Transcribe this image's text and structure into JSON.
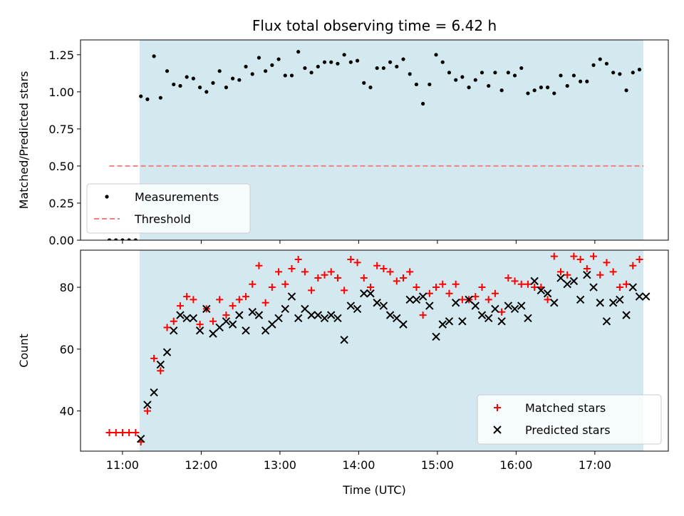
{
  "chart_data": [
    {
      "type": "scatter",
      "title": "Flux total observing time = 6.42 h",
      "ylabel": "Matched/Predicted stars",
      "xlabel": "",
      "xlim": [
        "10:28",
        "17:56"
      ],
      "ylim": [
        0,
        1.35
      ],
      "yticks": [
        "0.00",
        "0.25",
        "0.50",
        "0.75",
        "1.00",
        "1.25"
      ],
      "xticks": [
        "11:00",
        "12:00",
        "13:00",
        "14:00",
        "15:00",
        "16:00",
        "17:00"
      ],
      "shaded_span": [
        "11:13",
        "17:37"
      ],
      "shaded_color": "#d3e9ef",
      "legend_position": "lower-left",
      "series": [
        {
          "name": "Measurements",
          "color": "#000000",
          "marker": "dot",
          "x": [
            "10:50",
            "10:55",
            "11:00",
            "11:05",
            "11:10",
            "11:14",
            "11:19",
            "11:24",
            "11:29",
            "11:34",
            "11:39",
            "11:44",
            "11:49",
            "11:54",
            "11:59",
            "12:04",
            "12:09",
            "12:14",
            "12:19",
            "12:24",
            "12:29",
            "12:34",
            "12:39",
            "12:44",
            "12:49",
            "12:54",
            "12:59",
            "13:04",
            "13:09",
            "13:14",
            "13:19",
            "13:24",
            "13:29",
            "13:34",
            "13:39",
            "13:44",
            "13:49",
            "13:54",
            "13:59",
            "14:04",
            "14:09",
            "14:14",
            "14:19",
            "14:24",
            "14:29",
            "14:34",
            "14:39",
            "14:44",
            "14:49",
            "14:54",
            "14:59",
            "15:04",
            "15:09",
            "15:14",
            "15:19",
            "15:24",
            "15:29",
            "15:34",
            "15:39",
            "15:44",
            "15:49",
            "15:54",
            "15:59",
            "16:04",
            "16:09",
            "16:14",
            "16:19",
            "16:24",
            "16:29",
            "16:34",
            "16:39",
            "16:44",
            "16:49",
            "16:54",
            "16:59",
            "17:04",
            "17:09",
            "17:14",
            "17:19",
            "17:24",
            "17:29",
            "17:34"
          ],
          "y": [
            0.0,
            0.0,
            0.0,
            0.0,
            0.0,
            0.97,
            0.95,
            1.24,
            0.96,
            1.14,
            1.05,
            1.04,
            1.1,
            1.09,
            1.03,
            1.0,
            1.06,
            1.14,
            1.03,
            1.09,
            1.08,
            1.17,
            1.12,
            1.23,
            1.14,
            1.18,
            1.22,
            1.11,
            1.11,
            1.27,
            1.16,
            1.13,
            1.17,
            1.2,
            1.2,
            1.19,
            1.25,
            1.2,
            1.21,
            1.06,
            1.03,
            1.16,
            1.16,
            1.2,
            1.17,
            1.22,
            1.12,
            1.05,
            0.92,
            1.05,
            1.25,
            1.2,
            1.13,
            1.08,
            1.1,
            1.03,
            1.08,
            1.13,
            1.04,
            1.13,
            1.01,
            1.13,
            1.11,
            1.16,
            0.99,
            1.01,
            1.03,
            1.03,
            0.99,
            1.11,
            1.04,
            1.11,
            1.07,
            1.07,
            1.18,
            1.22,
            1.19,
            1.13,
            1.12,
            1.01,
            1.13,
            1.15
          ]
        },
        {
          "name": "Threshold",
          "color": "#f08080",
          "style": "dashed",
          "x": [
            "10:50",
            "17:37"
          ],
          "y": [
            0.5,
            0.5
          ]
        }
      ]
    },
    {
      "type": "scatter",
      "title": "",
      "ylabel": "Count",
      "xlabel": "Time (UTC)",
      "xlim": [
        "10:28",
        "17:56"
      ],
      "ylim": [
        27,
        92
      ],
      "yticks": [
        "40",
        "60",
        "80"
      ],
      "xticks": [
        "11:00",
        "12:00",
        "13:00",
        "14:00",
        "15:00",
        "16:00",
        "17:00"
      ],
      "shaded_span": [
        "11:13",
        "17:37"
      ],
      "shaded_color": "#d3e9ef",
      "legend_position": "lower-right",
      "series": [
        {
          "name": "Matched stars",
          "color": "#ff0000",
          "marker": "plus",
          "x": [
            "10:50",
            "10:55",
            "11:00",
            "11:05",
            "11:10",
            "11:14",
            "11:19",
            "11:24",
            "11:29",
            "11:34",
            "11:39",
            "11:44",
            "11:49",
            "11:54",
            "11:59",
            "12:04",
            "12:09",
            "12:14",
            "12:19",
            "12:24",
            "12:29",
            "12:34",
            "12:39",
            "12:44",
            "12:49",
            "12:54",
            "12:59",
            "13:04",
            "13:09",
            "13:14",
            "13:19",
            "13:24",
            "13:29",
            "13:34",
            "13:39",
            "13:44",
            "13:49",
            "13:54",
            "13:59",
            "14:04",
            "14:09",
            "14:14",
            "14:19",
            "14:24",
            "14:29",
            "14:34",
            "14:39",
            "14:44",
            "14:49",
            "14:54",
            "14:59",
            "15:04",
            "15:09",
            "15:14",
            "15:19",
            "15:24",
            "15:29",
            "15:34",
            "15:39",
            "15:44",
            "15:49",
            "15:54",
            "15:59",
            "16:04",
            "16:09",
            "16:14",
            "16:19",
            "16:24",
            "16:29",
            "16:34",
            "16:39",
            "16:44",
            "16:49",
            "16:54",
            "16:59",
            "17:04",
            "17:09",
            "17:14",
            "17:19",
            "17:24",
            "17:29",
            "17:34"
          ],
          "y": [
            33,
            33,
            33,
            33,
            33,
            30,
            40,
            57,
            53,
            67,
            69,
            74,
            77,
            76,
            68,
            73,
            69,
            76,
            71,
            74,
            76,
            77,
            81,
            87,
            75,
            80,
            85,
            81,
            86,
            89,
            85,
            79,
            83,
            84,
            85,
            83,
            79,
            89,
            88,
            83,
            80,
            87,
            86,
            85,
            82,
            83,
            85,
            80,
            71,
            78,
            80,
            81,
            78,
            81,
            76,
            76,
            77,
            80,
            76,
            78,
            72,
            83,
            82,
            81,
            81,
            80,
            80,
            76,
            90,
            85,
            84,
            90,
            89,
            86,
            90,
            84,
            88,
            85,
            80,
            81,
            87,
            89
          ]
        },
        {
          "name": "Predicted stars",
          "color": "#000000",
          "marker": "x",
          "x": [
            "11:14",
            "11:19",
            "11:24",
            "11:29",
            "11:34",
            "11:39",
            "11:44",
            "11:49",
            "11:54",
            "11:59",
            "12:04",
            "12:09",
            "12:14",
            "12:19",
            "12:24",
            "12:29",
            "12:34",
            "12:39",
            "12:44",
            "12:49",
            "12:54",
            "12:59",
            "13:04",
            "13:09",
            "13:14",
            "13:19",
            "13:24",
            "13:29",
            "13:34",
            "13:39",
            "13:44",
            "13:49",
            "13:54",
            "13:59",
            "14:04",
            "14:09",
            "14:14",
            "14:19",
            "14:24",
            "14:29",
            "14:34",
            "14:39",
            "14:44",
            "14:49",
            "14:54",
            "14:59",
            "15:04",
            "15:09",
            "15:14",
            "15:19",
            "15:24",
            "15:29",
            "15:34",
            "15:39",
            "15:44",
            "15:49",
            "15:54",
            "15:59",
            "16:04",
            "16:09",
            "16:14",
            "16:19",
            "16:24",
            "16:29",
            "16:34",
            "16:39",
            "16:44",
            "16:49",
            "16:54",
            "16:59",
            "17:04",
            "17:09",
            "17:14",
            "17:19",
            "17:24",
            "17:29",
            "17:34",
            "17:39"
          ],
          "y": [
            31,
            42,
            46,
            55,
            59,
            66,
            71,
            70,
            70,
            66,
            73,
            65,
            67,
            69,
            68,
            71,
            66,
            72,
            71,
            66,
            68,
            70,
            73,
            77,
            70,
            73,
            71,
            71,
            70,
            71,
            70,
            63,
            74,
            73,
            78,
            78,
            75,
            74,
            71,
            70,
            68,
            76,
            76,
            77,
            74,
            64,
            68,
            69,
            75,
            69,
            76,
            74,
            71,
            70,
            73,
            69,
            74,
            73,
            74,
            70,
            82,
            79,
            78,
            75,
            83,
            81,
            82,
            76,
            84,
            80,
            75,
            69,
            75,
            76,
            71,
            80,
            77,
            77
          ]
        }
      ]
    }
  ]
}
